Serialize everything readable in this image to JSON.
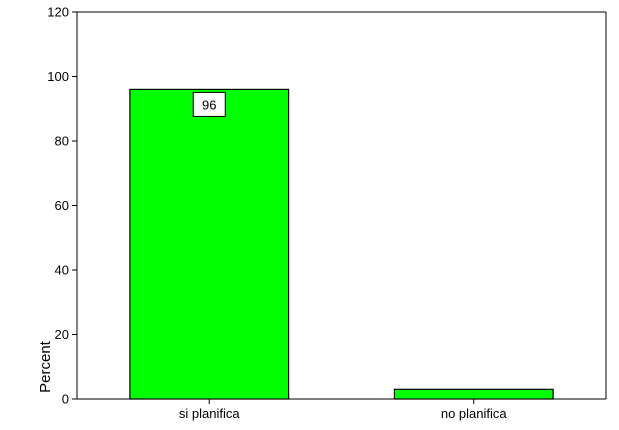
{
  "chart_data": {
    "type": "bar",
    "categories": [
      "si planifica",
      "no planifica"
    ],
    "values": [
      96,
      3
    ],
    "data_labels": [
      "96",
      ""
    ],
    "title": "",
    "xlabel": "",
    "ylabel": "Percent",
    "ylim": [
      0,
      120
    ],
    "yticks": [
      0,
      20,
      40,
      60,
      80,
      100,
      120
    ],
    "grid": false,
    "legend": "none",
    "bar_color": "#00ff00"
  }
}
